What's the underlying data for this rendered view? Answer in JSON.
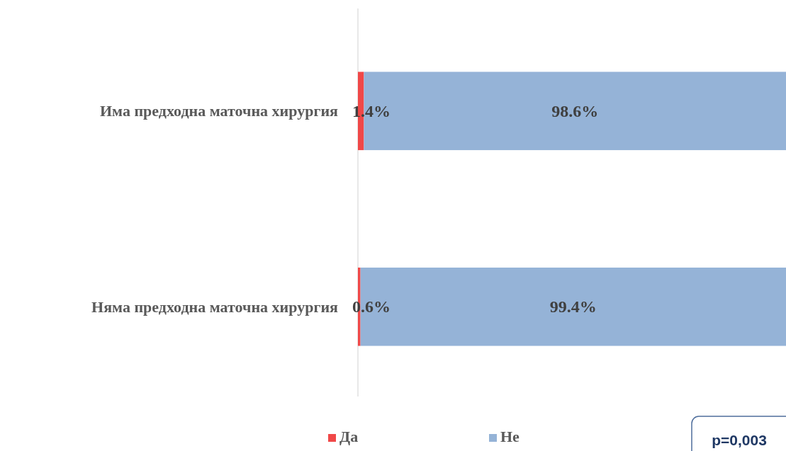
{
  "chart_data": {
    "type": "bar",
    "orientation": "horizontal",
    "stacked": true,
    "categories": [
      "Има предходна маточна хирургия",
      "Няма предходна маточна хирургия"
    ],
    "series": [
      {
        "name": "Да",
        "color": "#f04848",
        "values": [
          1.4,
          0.6
        ],
        "value_labels": [
          "1.4%",
          "0.6%"
        ]
      },
      {
        "name": "Не",
        "color": "#95b3d7",
        "values": [
          98.6,
          99.4
        ],
        "value_labels": [
          "98.6%",
          "99.4%"
        ]
      }
    ],
    "xlim": [
      0,
      100
    ],
    "tick_labels": "y",
    "legend": "bottom",
    "annotations": [
      "p=0,003"
    ]
  }
}
